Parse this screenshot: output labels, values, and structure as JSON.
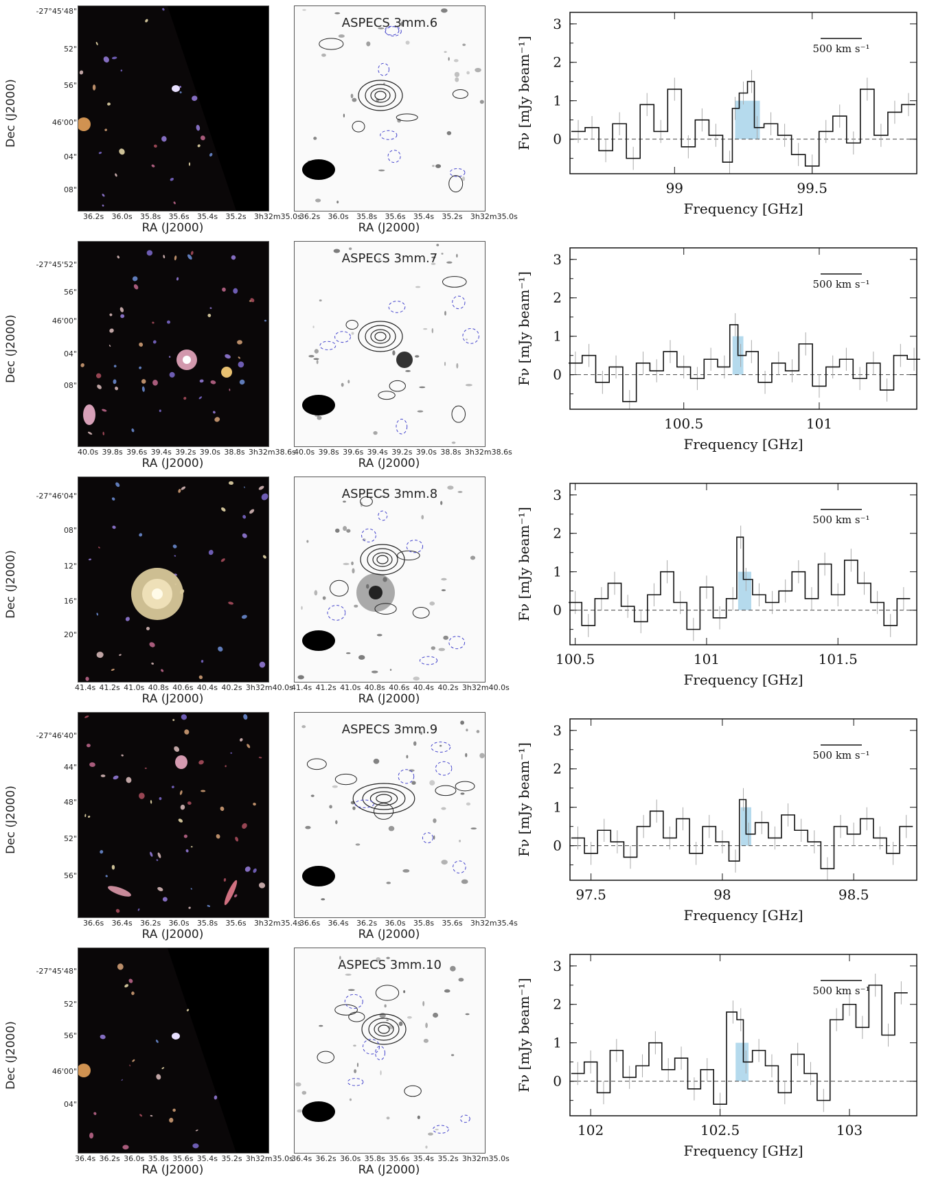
{
  "rows": [
    {
      "dec_label": "Dec (J2000)",
      "dec_ticks": [
        "-27°45'48\"",
        "52\"",
        "56\"",
        "46'00\"",
        "04\"",
        "08\""
      ],
      "ra_ticks": [
        "36.2s",
        "36.0s",
        "35.8s",
        "35.6s",
        "35.4s",
        "35.2s",
        "3h32m35.0s"
      ],
      "ra_label": "RA (J2000)",
      "source": "ASPECS 3mm.6",
      "spectrum": {
        "xlabel": "Frequency [GHz]",
        "ylabel": "Fν [mJy beam⁻¹]",
        "xticks": [
          "99",
          "99.5"
        ],
        "yticks": [
          "0",
          "1",
          "2",
          "3"
        ],
        "scalebar": "500 km s⁻¹"
      }
    },
    {
      "dec_label": "Dec (J2000)",
      "dec_ticks": [
        "-27°45'52\"",
        "56\"",
        "46'00\"",
        "04\"",
        "08\""
      ],
      "ra_ticks": [
        "40.0s",
        "39.8s",
        "39.6s",
        "39.4s",
        "39.2s",
        "39.0s",
        "38.8s",
        "3h32m38.6s"
      ],
      "ra_label": "RA (J2000)",
      "source": "ASPECS 3mm.7",
      "spectrum": {
        "xlabel": "Frequency [GHz]",
        "ylabel": "Fν [mJy beam⁻¹]",
        "xticks": [
          "100.5",
          "101"
        ],
        "yticks": [
          "0",
          "1",
          "2",
          "3"
        ],
        "scalebar": "500 km s⁻¹"
      }
    },
    {
      "dec_label": "Dec (J2000)",
      "dec_ticks": [
        "-27°46'04\"",
        "08\"",
        "12\"",
        "16\"",
        "20\""
      ],
      "ra_ticks": [
        "41.4s",
        "41.2s",
        "41.0s",
        "40.8s",
        "40.6s",
        "40.4s",
        "40.2s",
        "3h32m40.0s"
      ],
      "ra_label": "RA (J2000)",
      "source": "ASPECS 3mm.8",
      "spectrum": {
        "xlabel": "Frequency [GHz]",
        "ylabel": "Fν [mJy beam⁻¹]",
        "xticks": [
          "100.5",
          "101",
          "101.5"
        ],
        "yticks": [
          "0",
          "1",
          "2",
          "3"
        ],
        "scalebar": "500 km s⁻¹"
      }
    },
    {
      "dec_label": "Dec (J2000)",
      "dec_ticks": [
        "-27°46'40\"",
        "44\"",
        "48\"",
        "52\"",
        "56\""
      ],
      "ra_ticks": [
        "36.6s",
        "36.4s",
        "36.2s",
        "36.0s",
        "35.8s",
        "35.6s",
        "3h32m35.4s"
      ],
      "ra_label": "RA (J2000)",
      "source": "ASPECS 3mm.9",
      "spectrum": {
        "xlabel": "Frequency [GHz]",
        "ylabel": "Fν [mJy beam⁻¹]",
        "xticks": [
          "97.5",
          "98",
          "98.5"
        ],
        "yticks": [
          "0",
          "1",
          "2",
          "3"
        ],
        "scalebar": "500 km s⁻¹"
      }
    },
    {
      "dec_label": "Dec (J2000)",
      "dec_ticks": [
        "-27°45'48\"",
        "52\"",
        "56\"",
        "46'00\"",
        "04\""
      ],
      "ra_ticks": [
        "36.4s",
        "36.2s",
        "36.0s",
        "35.8s",
        "35.6s",
        "35.4s",
        "35.2s",
        "3h32m35.0s"
      ],
      "ra_label": "RA (J2000)",
      "source": "ASPECS 3mm.10",
      "spectrum": {
        "xlabel": "Frequency [GHz]",
        "ylabel": "Fν [mJy beam⁻¹]",
        "xticks": [
          "102",
          "102.5",
          "103"
        ],
        "yticks": [
          "0",
          "1",
          "2",
          "3"
        ],
        "scalebar": "500 km s⁻¹"
      }
    }
  ],
  "chart_data": [
    {
      "type": "line",
      "source": "ASPECS 3mm.6",
      "xlabel": "Frequency [GHz]",
      "ylabel": "Fν [mJy beam⁻¹]",
      "xlim": [
        98.62,
        99.88
      ],
      "ylim": [
        -0.9,
        3.3
      ],
      "line_range": [
        99.22,
        99.31
      ],
      "x": [
        98.65,
        98.7,
        98.75,
        98.8,
        98.85,
        98.9,
        98.95,
        99.0,
        99.05,
        99.1,
        99.15,
        99.2,
        99.22,
        99.25,
        99.28,
        99.3,
        99.35,
        99.4,
        99.45,
        99.5,
        99.55,
        99.6,
        99.65,
        99.7,
        99.75,
        99.8,
        99.85
      ],
      "y": [
        0.2,
        0.3,
        -0.3,
        0.4,
        -0.5,
        0.9,
        0.2,
        1.3,
        -0.2,
        0.5,
        0.1,
        -0.6,
        0.8,
        1.2,
        1.5,
        0.3,
        0.4,
        0.1,
        -0.4,
        -0.7,
        0.2,
        0.6,
        -0.1,
        1.3,
        0.1,
        0.7,
        0.9
      ]
    },
    {
      "type": "line",
      "source": "ASPECS 3mm.7",
      "xlabel": "Frequency [GHz]",
      "ylabel": "Fν [mJy beam⁻¹]",
      "xlim": [
        100.08,
        101.36
      ],
      "ylim": [
        -0.9,
        3.3
      ],
      "line_range": [
        100.68,
        100.72
      ],
      "x": [
        100.1,
        100.15,
        100.2,
        100.25,
        100.3,
        100.35,
        100.4,
        100.45,
        100.5,
        100.55,
        100.6,
        100.65,
        100.69,
        100.71,
        100.75,
        100.8,
        100.85,
        100.9,
        100.95,
        101.0,
        101.05,
        101.1,
        101.15,
        101.2,
        101.25,
        101.3,
        101.35
      ],
      "y": [
        0.3,
        0.5,
        -0.2,
        0.2,
        -0.7,
        0.3,
        0.1,
        0.6,
        0.2,
        -0.1,
        0.4,
        0.2,
        1.3,
        0.5,
        0.6,
        -0.2,
        0.3,
        0.1,
        0.8,
        -0.3,
        0.2,
        0.4,
        -0.1,
        0.3,
        -0.4,
        0.5,
        0.4
      ]
    },
    {
      "type": "line",
      "source": "ASPECS 3mm.8",
      "xlabel": "Frequency [GHz]",
      "ylabel": "Fν [mJy beam⁻¹]",
      "xlim": [
        100.48,
        101.8
      ],
      "ylim": [
        -0.9,
        3.3
      ],
      "line_range": [
        101.12,
        101.17
      ],
      "x": [
        100.5,
        100.55,
        100.6,
        100.65,
        100.7,
        100.75,
        100.8,
        100.85,
        100.9,
        100.95,
        101.0,
        101.05,
        101.1,
        101.13,
        101.15,
        101.2,
        101.25,
        101.3,
        101.35,
        101.4,
        101.45,
        101.5,
        101.55,
        101.6,
        101.65,
        101.7,
        101.75
      ],
      "y": [
        0.2,
        -0.4,
        0.3,
        0.7,
        0.1,
        -0.3,
        0.4,
        1.0,
        0.2,
        -0.5,
        0.6,
        -0.2,
        0.3,
        1.9,
        0.8,
        0.4,
        0.2,
        0.5,
        1.0,
        0.3,
        1.2,
        0.4,
        1.3,
        0.7,
        0.2,
        -0.4,
        0.3
      ]
    },
    {
      "type": "line",
      "source": "ASPECS 3mm.9",
      "xlabel": "Frequency [GHz]",
      "ylabel": "Fν [mJy beam⁻¹]",
      "xlim": [
        97.42,
        98.74
      ],
      "ylim": [
        -0.9,
        3.3
      ],
      "line_range": [
        98.07,
        98.11
      ],
      "x": [
        97.45,
        97.5,
        97.55,
        97.6,
        97.65,
        97.7,
        97.75,
        97.8,
        97.85,
        97.9,
        97.95,
        98.0,
        98.05,
        98.08,
        98.1,
        98.15,
        98.2,
        98.25,
        98.3,
        98.35,
        98.4,
        98.45,
        98.5,
        98.55,
        98.6,
        98.65,
        98.7
      ],
      "y": [
        0.2,
        -0.2,
        0.4,
        0.1,
        -0.3,
        0.5,
        0.9,
        0.2,
        0.7,
        -0.2,
        0.5,
        0.1,
        -0.4,
        1.2,
        0.3,
        0.6,
        0.2,
        0.8,
        0.4,
        0.1,
        -0.6,
        0.5,
        0.3,
        0.7,
        0.2,
        -0.2,
        0.5
      ]
    },
    {
      "type": "line",
      "source": "ASPECS 3mm.10",
      "xlabel": "Frequency [GHz]",
      "ylabel": "Fν [mJy beam⁻¹]",
      "xlim": [
        101.92,
        103.26
      ],
      "ylim": [
        -0.9,
        3.3
      ],
      "line_range": [
        102.56,
        102.61
      ],
      "x": [
        101.95,
        102.0,
        102.05,
        102.1,
        102.15,
        102.2,
        102.25,
        102.3,
        102.35,
        102.4,
        102.45,
        102.5,
        102.55,
        102.58,
        102.6,
        102.65,
        102.7,
        102.75,
        102.8,
        102.85,
        102.9,
        102.95,
        103.0,
        103.05,
        103.1,
        103.15,
        103.2
      ],
      "y": [
        0.2,
        0.5,
        -0.3,
        0.8,
        0.1,
        0.4,
        1.0,
        0.3,
        0.6,
        -0.2,
        0.3,
        -0.6,
        1.8,
        1.6,
        0.5,
        0.8,
        0.4,
        -0.3,
        0.7,
        0.2,
        -0.5,
        1.6,
        2.0,
        1.4,
        2.5,
        1.2,
        2.3
      ]
    }
  ]
}
